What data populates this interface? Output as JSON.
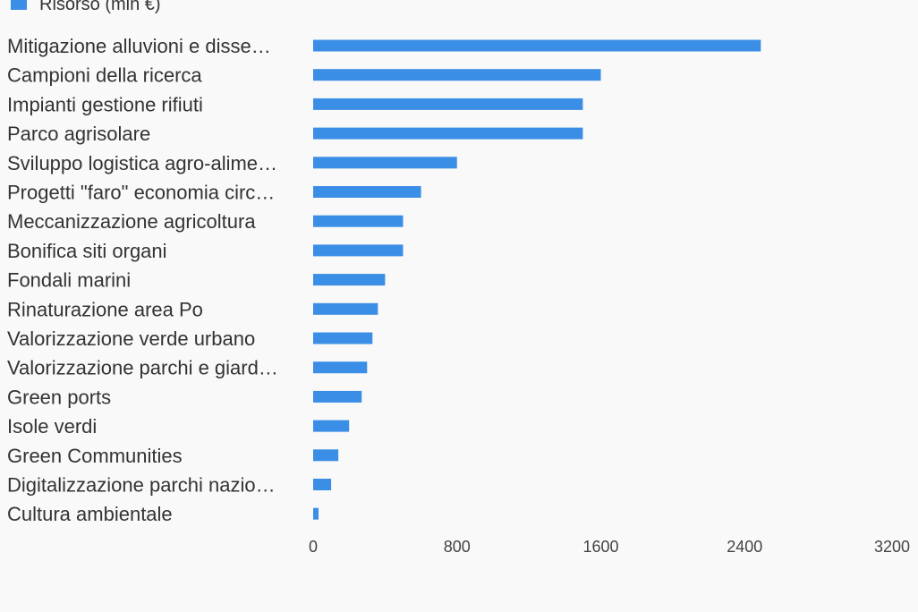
{
  "chart_data": {
    "type": "bar",
    "orientation": "horizontal",
    "title": "",
    "xlabel": "",
    "ylabel": "",
    "legend": {
      "position": "top-left",
      "entries": [
        "Risorso (mln €)"
      ]
    },
    "categories": [
      "Mitigazione alluvioni e disse…",
      "Campioni della ricerca",
      "Impianti gestione rifiuti",
      "Parco agrisolare",
      "Sviluppo logistica agro-alime…",
      "Progetti \"faro\" economia circ…",
      "Meccanizzazione agricoltura",
      "Bonifica siti organi",
      "Fondali marini",
      "Rinaturazione area Po",
      "Valorizzazione verde urbano",
      "Valorizzazione parchi e giard…",
      "Green ports",
      "Isole verdi",
      "Green Communities",
      "Digitalizzazione parchi nazio…",
      "Cultura ambientale"
    ],
    "series": [
      {
        "name": "Risorso (mln €)",
        "color": "#3a8ee6",
        "values": [
          2490,
          1600,
          1500,
          1500,
          800,
          600,
          500,
          500,
          400,
          360,
          330,
          300,
          270,
          200,
          140,
          100,
          30
        ]
      }
    ],
    "xlim": [
      0,
      3200
    ],
    "ticks": [
      "0",
      "800",
      "1600",
      "2400",
      "3200"
    ],
    "grid": false
  }
}
